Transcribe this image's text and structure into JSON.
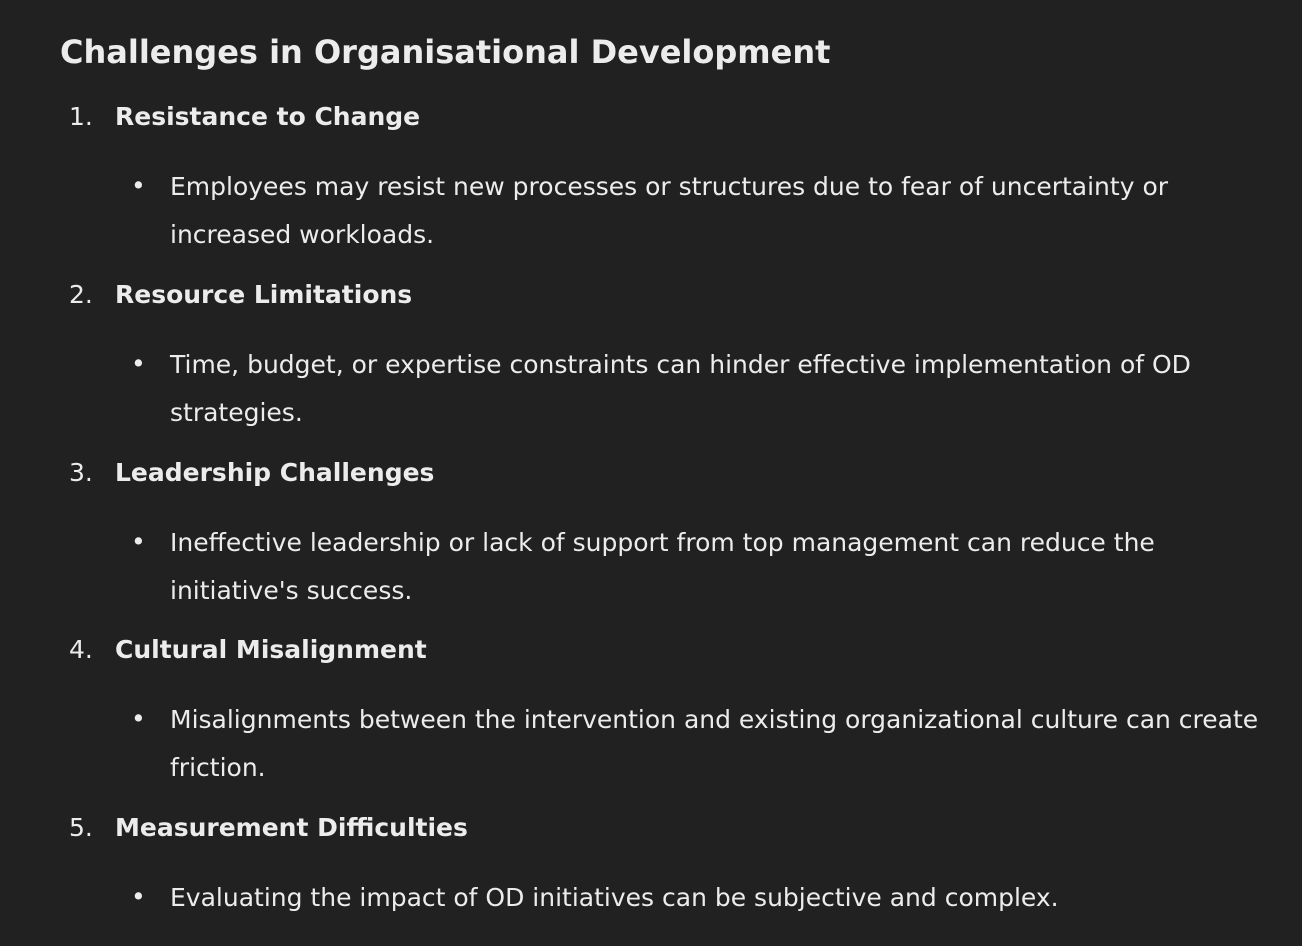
{
  "title": "Challenges in Organisational Development",
  "items": [
    {
      "number": "1.",
      "heading": "Resistance to Change",
      "bullet": "•",
      "description": "Employees may resist new processes or structures due to fear of uncertainty or increased workloads."
    },
    {
      "number": "2.",
      "heading": "Resource Limitations",
      "bullet": "•",
      "description": "Time, budget, or expertise constraints can hinder effective implementation of OD strategies."
    },
    {
      "number": "3.",
      "heading": "Leadership Challenges",
      "bullet": "•",
      "description": "Ineffective leadership or lack of support from top management can reduce the initiative's success."
    },
    {
      "number": "4.",
      "heading": "Cultural Misalignment",
      "bullet": "•",
      "description": "Misalignments between the intervention and existing organizational culture can create friction."
    },
    {
      "number": "5.",
      "heading": "Measurement Difficulties",
      "bullet": "•",
      "description": "Evaluating the impact of OD initiatives can be subjective and complex."
    }
  ]
}
